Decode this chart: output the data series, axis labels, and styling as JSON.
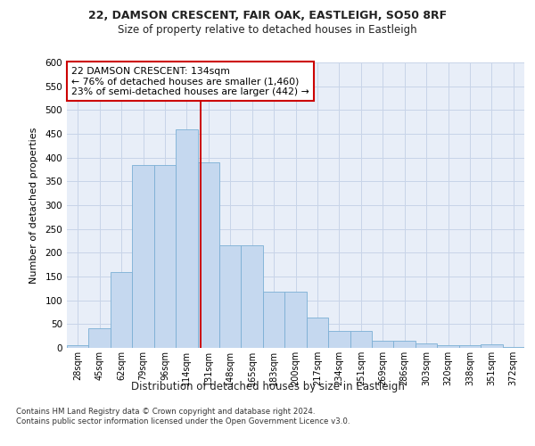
{
  "title1": "22, DAMSON CRESCENT, FAIR OAK, EASTLEIGH, SO50 8RF",
  "title2": "Size of property relative to detached houses in Eastleigh",
  "xlabel": "Distribution of detached houses by size in Eastleigh",
  "ylabel": "Number of detached properties",
  "categories": [
    "28sqm",
    "45sqm",
    "62sqm",
    "79sqm",
    "96sqm",
    "114sqm",
    "131sqm",
    "148sqm",
    "165sqm",
    "183sqm",
    "200sqm",
    "217sqm",
    "234sqm",
    "251sqm",
    "269sqm",
    "286sqm",
    "303sqm",
    "320sqm",
    "338sqm",
    "351sqm",
    "372sqm"
  ],
  "values": [
    5,
    42,
    160,
    385,
    385,
    460,
    390,
    215,
    215,
    118,
    118,
    63,
    35,
    35,
    15,
    15,
    10,
    5,
    5,
    8,
    2
  ],
  "bar_color": "#c5d8ef",
  "bar_edge_color": "#7bafd4",
  "grid_color": "#c8d4e8",
  "background_color": "#e8eef8",
  "vline_x": 5.62,
  "annotation_text": "22 DAMSON CRESCENT: 134sqm\n← 76% of detached houses are smaller (1,460)\n23% of semi-detached houses are larger (442) →",
  "annotation_box_facecolor": "#ffffff",
  "annotation_box_edgecolor": "#cc0000",
  "footer": "Contains HM Land Registry data © Crown copyright and database right 2024.\nContains public sector information licensed under the Open Government Licence v3.0.",
  "ylim": [
    0,
    600
  ],
  "yticks": [
    0,
    50,
    100,
    150,
    200,
    250,
    300,
    350,
    400,
    450,
    500,
    550,
    600
  ]
}
